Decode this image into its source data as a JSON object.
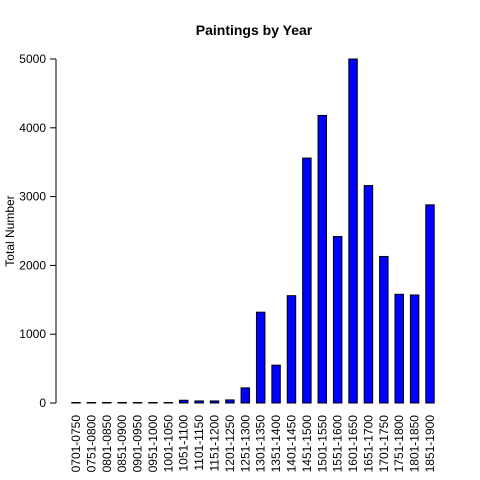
{
  "chart_data": {
    "type": "bar",
    "title": "Paintings by Year",
    "xlabel": "",
    "ylabel": "Total Number",
    "ylim": [
      0,
      5000
    ],
    "yticks": [
      "0",
      "1000",
      "2000",
      "3000",
      "4000",
      "5000"
    ],
    "categories": [
      "0701-0750",
      "0751-0800",
      "0801-0850",
      "0851-0900",
      "0901-0950",
      "0951-1000",
      "1001-1050",
      "1051-1100",
      "1101-1150",
      "1151-1200",
      "1201-1250",
      "1251-1300",
      "1301-1350",
      "1351-1400",
      "1401-1450",
      "1451-1500",
      "1501-1550",
      "1551-1600",
      "1601-1650",
      "1651-1700",
      "1701-1750",
      "1751-1800",
      "1801-1850",
      "1851-1900"
    ],
    "values": [
      3,
      5,
      3,
      2,
      2,
      2,
      3,
      40,
      30,
      30,
      45,
      220,
      1320,
      550,
      1560,
      3560,
      4180,
      2420,
      5000,
      3160,
      2130,
      1580,
      1570,
      2880
    ],
    "bar_color": "#0000ff",
    "grid": false,
    "legend": "none"
  }
}
